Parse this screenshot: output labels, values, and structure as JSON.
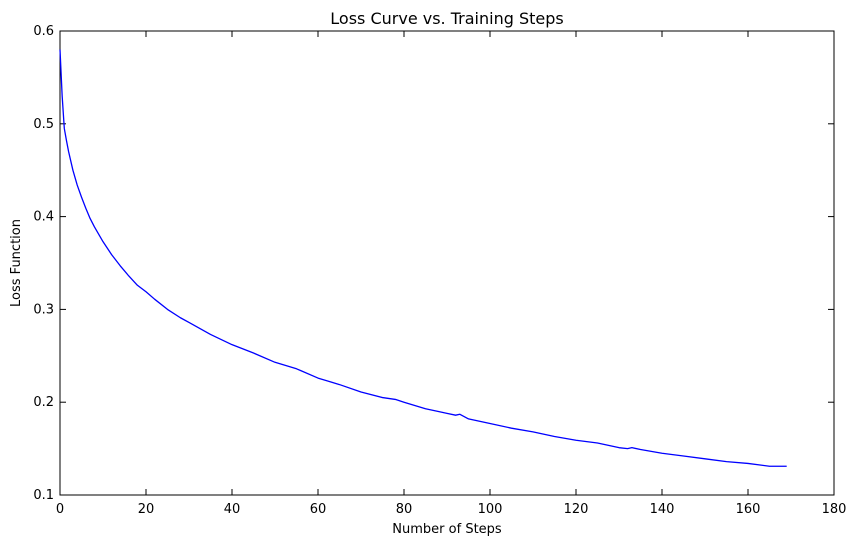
{
  "chart_data": {
    "type": "line",
    "title": "Loss Curve vs. Training Steps",
    "xlabel": "Number of Steps",
    "ylabel": "Loss Function",
    "xlim": [
      0,
      180
    ],
    "ylim": [
      0.1,
      0.6
    ],
    "xticks": [
      "0",
      "20",
      "40",
      "60",
      "80",
      "100",
      "120",
      "140",
      "160",
      "180"
    ],
    "yticks": [
      "0.1",
      "0.2",
      "0.3",
      "0.4",
      "0.5",
      "0.6"
    ],
    "grid": false,
    "legend": "none",
    "series": [
      {
        "color": "#0000ff",
        "x": [
          0,
          0.5,
          1,
          1.5,
          2,
          3,
          4,
          5,
          6,
          7,
          8,
          10,
          12,
          14,
          16,
          18,
          20,
          22,
          25,
          28,
          30,
          35,
          40,
          45,
          50,
          55,
          56,
          60,
          65,
          70,
          75,
          78,
          80,
          85,
          88,
          90,
          92,
          93,
          95,
          100,
          105,
          110,
          115,
          120,
          125,
          130,
          132,
          133,
          135,
          140,
          145,
          150,
          155,
          160,
          165,
          167,
          169
        ],
        "y": [
          0.58,
          0.53,
          0.495,
          0.482,
          0.47,
          0.45,
          0.434,
          0.421,
          0.409,
          0.398,
          0.389,
          0.373,
          0.359,
          0.347,
          0.336,
          0.326,
          0.319,
          0.311,
          0.3,
          0.291,
          0.286,
          0.273,
          0.262,
          0.253,
          0.243,
          0.236,
          0.234,
          0.226,
          0.219,
          0.211,
          0.205,
          0.203,
          0.2,
          0.193,
          0.19,
          0.188,
          0.186,
          0.187,
          0.182,
          0.177,
          0.172,
          0.168,
          0.163,
          0.159,
          0.156,
          0.151,
          0.15,
          0.151,
          0.149,
          0.145,
          0.142,
          0.139,
          0.136,
          0.134,
          0.131,
          0.131,
          0.131
        ]
      }
    ]
  }
}
